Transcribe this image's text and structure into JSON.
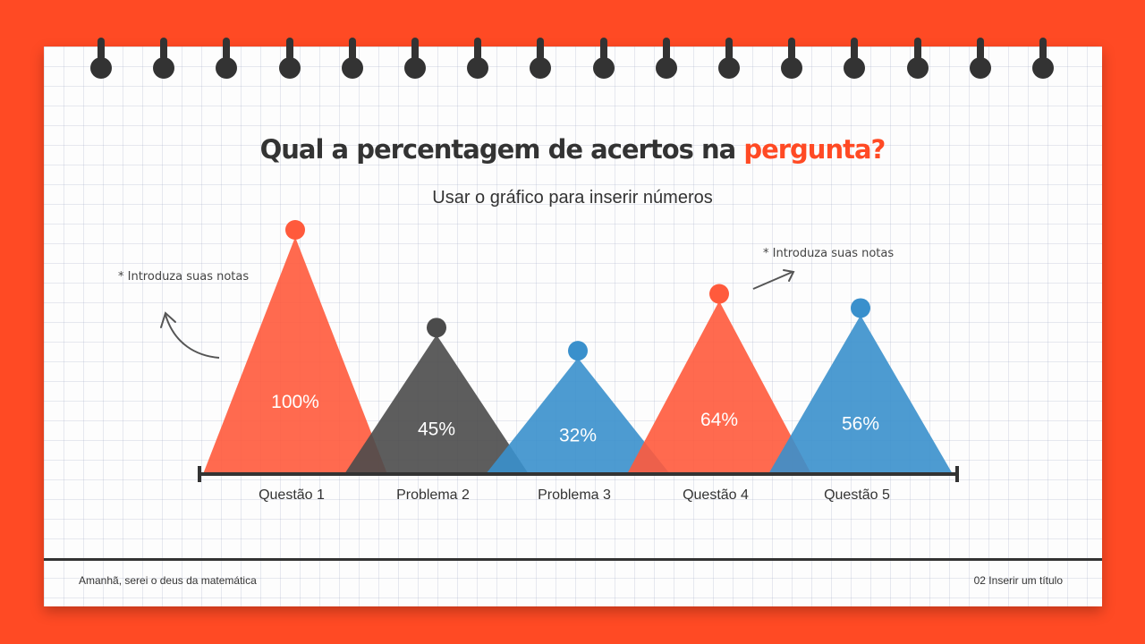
{
  "title_main": "Qual a percentagem de acertos na ",
  "title_accent": "pergunta?",
  "subtitle": "Usar o gráfico para inserir números",
  "notes": [
    "* Introduza suas notas",
    "* Introduza suas notas"
  ],
  "footer": {
    "left": "Amanhã, serei o deus da matemática",
    "right": "02 Inserir um título"
  },
  "colors": {
    "background": "#FF4A24",
    "red": "#FF5A3C",
    "dark": "#4B4B4B",
    "blue": "#3A90CC",
    "text": "#333333"
  },
  "chart_data": {
    "type": "bar",
    "categories": [
      "Questão 1",
      "Problema 2",
      "Problema 3",
      "Questão 4",
      "Questão 5"
    ],
    "values": [
      100,
      45,
      32,
      64,
      56
    ],
    "value_labels": [
      "100%",
      "45%",
      "32%",
      "64%",
      "56%"
    ],
    "series_colors": [
      "red",
      "dark",
      "blue",
      "red",
      "blue"
    ],
    "ylim": [
      0,
      100
    ]
  }
}
